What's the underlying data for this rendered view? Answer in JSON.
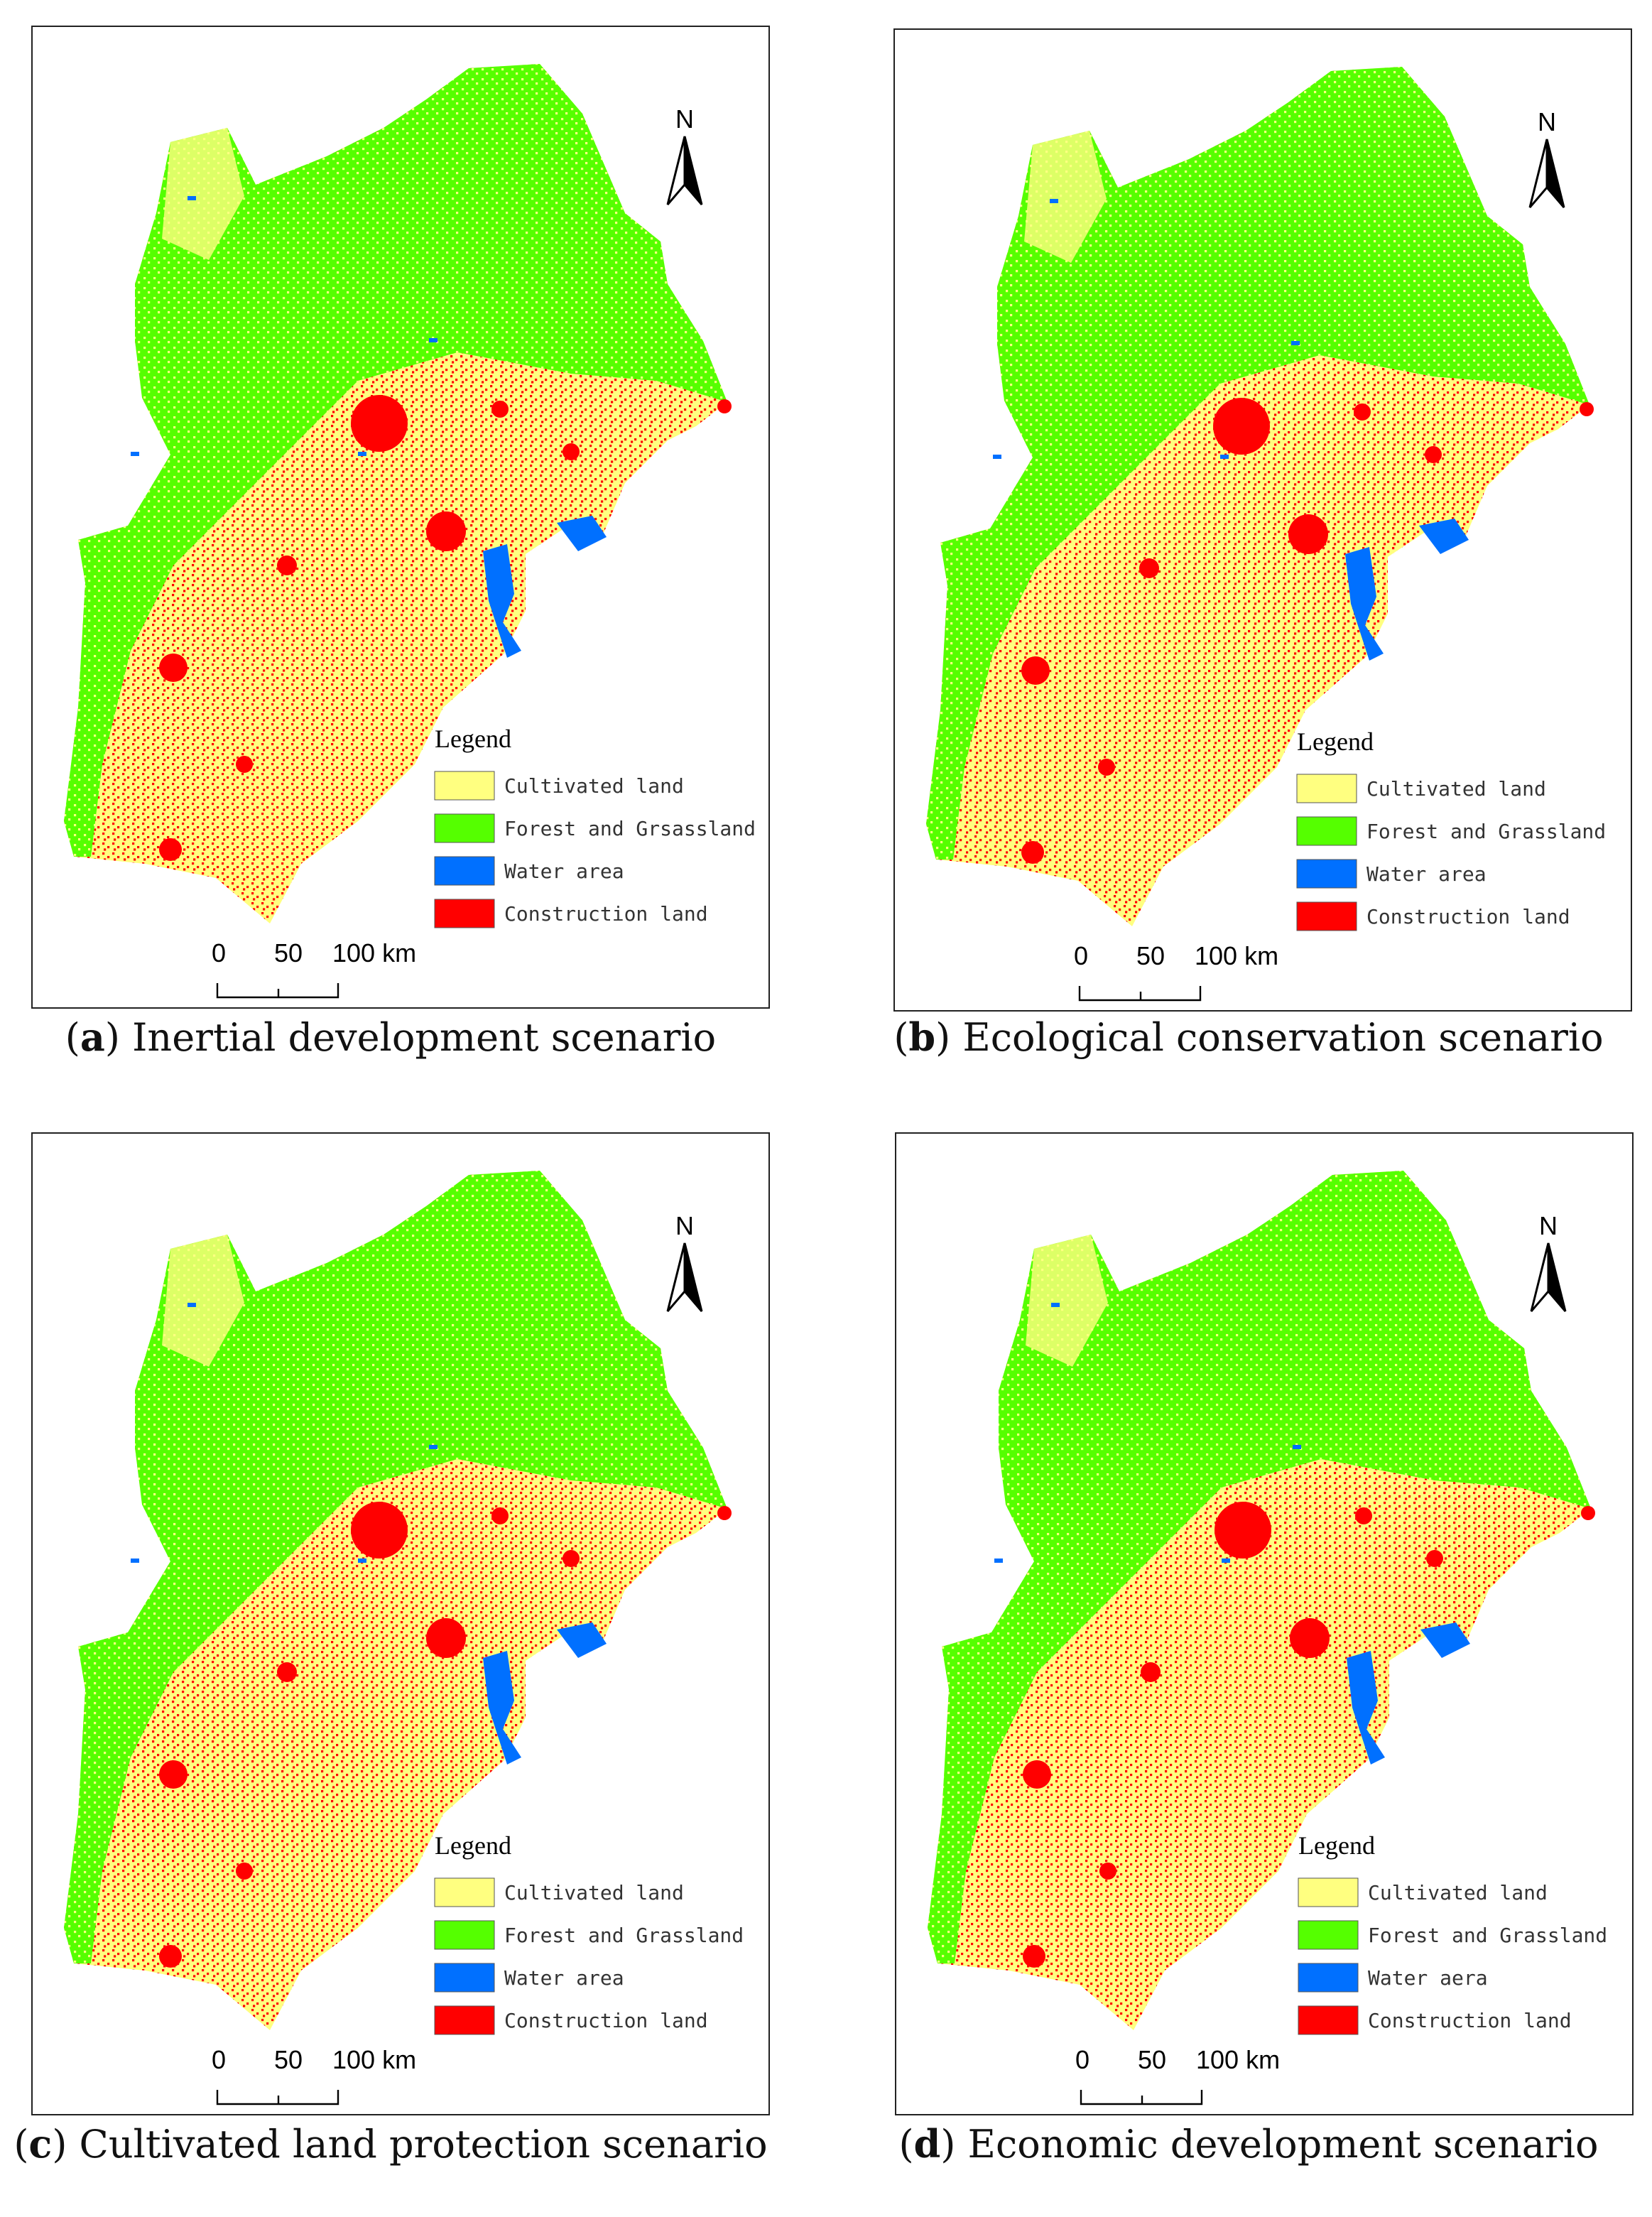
{
  "panels": [
    {
      "caption": {
        "prefix": "(",
        "letter": "a",
        "text": ") Inertial development scenario"
      },
      "north": "N",
      "legend": {
        "title": "Legend",
        "items": [
          {
            "label": "Cultivated land",
            "color": "#ffff80"
          },
          {
            "label": "Forest and Grsassland",
            "color": "#55ff00"
          },
          {
            "label": "Water area",
            "color": "#0070ff"
          },
          {
            "label": "Construction land",
            "color": "#ff0000"
          }
        ]
      },
      "scale": [
        "0",
        "50",
        "100 km"
      ]
    },
    {
      "caption": {
        "prefix": "(",
        "letter": "b",
        "text": ") Ecological conservation scenario"
      },
      "north": "N",
      "legend": {
        "title": "Legend",
        "items": [
          {
            "label": "Cultivated land",
            "color": "#ffff80"
          },
          {
            "label": "Forest and Grassland",
            "color": "#55ff00"
          },
          {
            "label": "Water area",
            "color": "#0070ff"
          },
          {
            "label": "Construction land",
            "color": "#ff0000"
          }
        ]
      },
      "scale": [
        "0",
        "50",
        "100 km"
      ]
    },
    {
      "caption": {
        "prefix": "(",
        "letter": "c",
        "text": ") Cultivated land protection scenario"
      },
      "north": "N",
      "legend": {
        "title": "Legend",
        "items": [
          {
            "label": "Cultivated land",
            "color": "#ffff80"
          },
          {
            "label": "Forest and Grassland",
            "color": "#55ff00"
          },
          {
            "label": "Water area",
            "color": "#0070ff"
          },
          {
            "label": "Construction land",
            "color": "#ff0000"
          }
        ]
      },
      "scale": [
        "0",
        "50",
        "100 km"
      ]
    },
    {
      "caption": {
        "prefix": "(",
        "letter": "d",
        "text": ") Economic development scenario"
      },
      "north": "N",
      "legend": {
        "title": "Legend",
        "items": [
          {
            "label": "Cultivated land",
            "color": "#ffff80"
          },
          {
            "label": "Forest and Grassland",
            "color": "#55ff00"
          },
          {
            "label": "Water aera",
            "color": "#0070ff"
          },
          {
            "label": "Construction land",
            "color": "#ff0000"
          }
        ]
      },
      "scale": [
        "0",
        "50",
        "100 km"
      ]
    }
  ]
}
